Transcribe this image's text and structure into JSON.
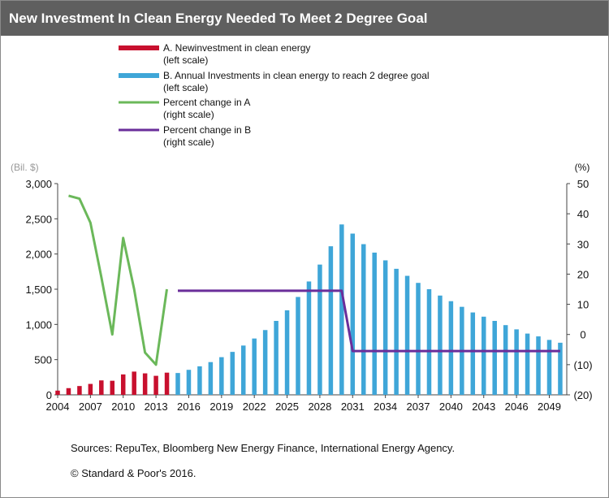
{
  "title": "New Investment In Clean Energy Needed To Meet 2 Degree Goal",
  "sources": "Sources: RepuTex, Bloomberg New Energy Finance, International Energy Agency.",
  "copyright": "© Standard & Poor's 2016.",
  "colors": {
    "title_bg": "#5f5f5f",
    "series_a": "#c8102e",
    "series_b": "#3fa6d8",
    "series_c": "#6bb85a",
    "series_d": "#6a2e9a"
  },
  "chart_data": {
    "type": "bar",
    "left_unit": "(Bil. $)",
    "right_unit": "(%)",
    "left_ylim": [
      0,
      3000
    ],
    "right_ylim": [
      -20,
      50
    ],
    "left_ticks": [
      "0",
      "500",
      "1,000",
      "1,500",
      "2,000",
      "2,500",
      "3,000"
    ],
    "right_ticks": [
      "(20)",
      "(10)",
      "0",
      "10",
      "20",
      "30",
      "40",
      "50"
    ],
    "x_tick_labels": [
      "2004",
      "2007",
      "2010",
      "2013",
      "2016",
      "2019",
      "2022",
      "2025",
      "2028",
      "2031",
      "2034",
      "2037",
      "2040",
      "2043",
      "2046",
      "2049"
    ],
    "legend": [
      {
        "label_line1": "A. Newinvestment in clean energy",
        "label_line2": "(left scale)",
        "kind": "bar",
        "color": "#c8102e"
      },
      {
        "label_line1": "B. Annual Investments in clean energy to reach 2 degree goal",
        "label_line2": "(left scale)",
        "kind": "bar",
        "color": "#3fa6d8"
      },
      {
        "label_line1": "Percent change in A",
        "label_line2": "(right scale)",
        "kind": "line",
        "color": "#6bb85a"
      },
      {
        "label_line1": "Percent change in B",
        "label_line2": "(right scale)",
        "kind": "line",
        "color": "#6a2e9a"
      }
    ],
    "series_a": {
      "x": [
        2004,
        2005,
        2006,
        2007,
        2008,
        2009,
        2010,
        2011,
        2012,
        2013,
        2014
      ],
      "values": [
        60,
        95,
        125,
        155,
        205,
        200,
        290,
        330,
        305,
        270,
        315
      ]
    },
    "series_b": {
      "x": [
        2015,
        2016,
        2017,
        2018,
        2019,
        2020,
        2021,
        2022,
        2023,
        2024,
        2025,
        2026,
        2027,
        2028,
        2029,
        2030,
        2031,
        2032,
        2033,
        2034,
        2035,
        2036,
        2037,
        2038,
        2039,
        2040,
        2041,
        2042,
        2043,
        2044,
        2045,
        2046,
        2047,
        2048,
        2049,
        2050
      ],
      "values": [
        310,
        355,
        405,
        465,
        535,
        610,
        700,
        800,
        920,
        1050,
        1200,
        1390,
        1610,
        1850,
        2110,
        2420,
        2290,
        2140,
        2020,
        1910,
        1790,
        1690,
        1590,
        1500,
        1410,
        1330,
        1250,
        1170,
        1110,
        1050,
        990,
        930,
        870,
        830,
        780,
        740
      ]
    },
    "series_c": {
      "x": [
        2005,
        2006,
        2007,
        2008,
        2009,
        2010,
        2011,
        2012,
        2013,
        2014
      ],
      "values": [
        46,
        45,
        37,
        19,
        0,
        32,
        15,
        -6,
        -10,
        15
      ]
    },
    "series_d": {
      "x": [
        2015,
        2030,
        2031,
        2050
      ],
      "values": [
        14.5,
        14.5,
        -5.5,
        -5.5
      ]
    }
  }
}
